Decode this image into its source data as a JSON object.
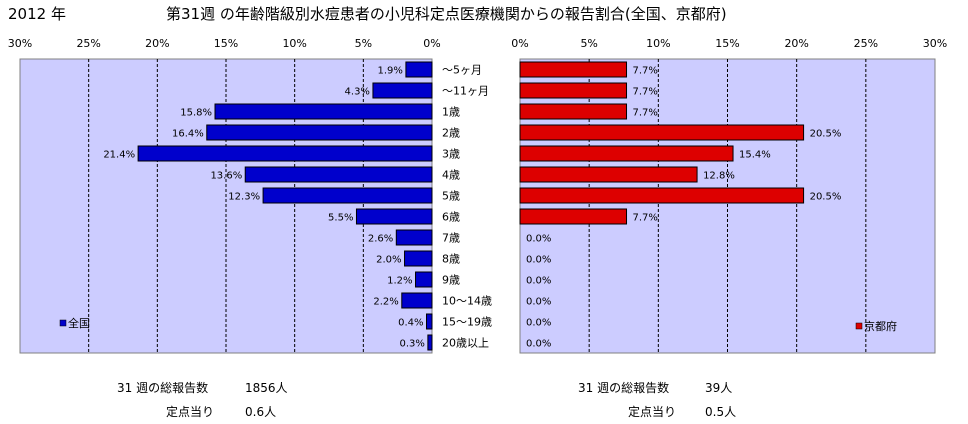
{
  "header": {
    "year": "2012 年",
    "title": "第31週 の年齢階級別水痘患者の小児科定点医療機関からの報告割合(全国、京都府)"
  },
  "chart_data": {
    "type": "bar",
    "orientation": "horizontal-butterfly",
    "categories": [
      "～5ヶ月",
      "～11ヶ月",
      "1歳",
      "2歳",
      "3歳",
      "4歳",
      "5歳",
      "6歳",
      "7歳",
      "8歳",
      "9歳",
      "10～14歳",
      "15～19歳",
      "20歳以上"
    ],
    "axis_ticks_left": [
      "30%",
      "25%",
      "20%",
      "15%",
      "10%",
      "5%",
      "0%"
    ],
    "axis_ticks_right": [
      "0%",
      "5%",
      "10%",
      "15%",
      "20%",
      "25%",
      "30%"
    ],
    "xlim": [
      0,
      30
    ],
    "grid": true,
    "series": [
      {
        "name": "全国",
        "color": "#0000cc",
        "values": [
          1.9,
          4.3,
          15.8,
          16.4,
          21.4,
          13.6,
          12.3,
          5.5,
          2.6,
          2.0,
          1.2,
          2.2,
          0.4,
          0.3
        ],
        "labels": [
          "1.9%",
          "4.3%",
          "15.8%",
          "16.4%",
          "21.4%",
          "13.6%",
          "12.3%",
          "5.5%",
          "2.6%",
          "2.0%",
          "1.2%",
          "2.2%",
          "0.4%",
          "0.3%"
        ],
        "legend_position": "bottom-left"
      },
      {
        "name": "京都府",
        "color": "#dd0000",
        "values": [
          7.7,
          7.7,
          7.7,
          20.5,
          15.4,
          12.8,
          20.5,
          7.7,
          0.0,
          0.0,
          0.0,
          0.0,
          0.0,
          0.0
        ],
        "labels": [
          "7.7%",
          "7.7%",
          "7.7%",
          "20.5%",
          "15.4%",
          "12.8%",
          "20.5%",
          "7.7%",
          "0.0%",
          "0.0%",
          "0.0%",
          "0.0%",
          "0.0%",
          "0.0%"
        ],
        "legend_position": "bottom-right"
      }
    ],
    "plot_background": "#ccccff"
  },
  "footer": {
    "left": {
      "total_label": "31 週の総報告数",
      "total_value": "1856人",
      "per_label": "定点当り",
      "per_value": "0.6人"
    },
    "right": {
      "total_label": "31 週の総報告数",
      "total_value": "39人",
      "per_label": "定点当り",
      "per_value": "0.5人"
    }
  }
}
